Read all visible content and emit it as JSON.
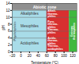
{
  "chart_data": {
    "type": "zones",
    "xlabel": "Temperature (°C)",
    "ylabel": "pH",
    "xlim": [
      -20,
      130
    ],
    "ylim": [
      0,
      14
    ],
    "xticks": [
      -20,
      0,
      20,
      40,
      60,
      80,
      100,
      120
    ],
    "yticks": [
      0,
      2,
      4,
      6,
      8,
      10,
      12,
      14
    ],
    "zones": [
      {
        "x1": -20,
        "x2": 60,
        "y1": 0,
        "y2": 12,
        "color": "#a8dce8"
      },
      {
        "x1": 60,
        "x2": 112,
        "y1": 0,
        "y2": 12,
        "color": "#d83030"
      },
      {
        "x1": 112,
        "x2": 130,
        "y1": 0,
        "y2": 12,
        "color": "#40b840"
      },
      {
        "x1": -20,
        "x2": 130,
        "y1": 12,
        "y2": 14,
        "color": "#909090"
      }
    ],
    "h_lines": [
      4,
      6,
      10,
      12
    ],
    "v_lines": [
      60
    ],
    "labels": [
      {
        "text": "Abiotic zone",
        "x": 55,
        "y": 13.0,
        "color": "white"
      },
      {
        "text": "Alkaliphiles",
        "x": 20,
        "y": 11.0,
        "color": "#333333"
      },
      {
        "text": "Mesophiles",
        "x": 20,
        "y": 7.5,
        "color": "#333333"
      },
      {
        "text": "Acidophiles",
        "x": 20,
        "y": 2.5,
        "color": "#333333"
      }
    ],
    "left_labels": [
      {
        "text": "Alkali-\nthermo-\nphiles",
        "x": 62,
        "y": 11.0,
        "color": "white"
      },
      {
        "text": "Pyro-\nthermo-\nphiles\nThermo-\nphiles",
        "x": 62,
        "y": 7.2,
        "color": "white"
      },
      {
        "text": "Acido-\nthermo-\nphiles\nThermo-\nacidophiles",
        "x": 62,
        "y": 2.5,
        "color": "white"
      }
    ],
    "vertical_labels": [
      {
        "text": "Psychrophiles",
        "x": -15,
        "y": 6.0,
        "color": "#333333"
      },
      {
        "text": "Extreme\nthermophiles",
        "x": 121,
        "y": 6.0,
        "color": "white"
      }
    ]
  }
}
